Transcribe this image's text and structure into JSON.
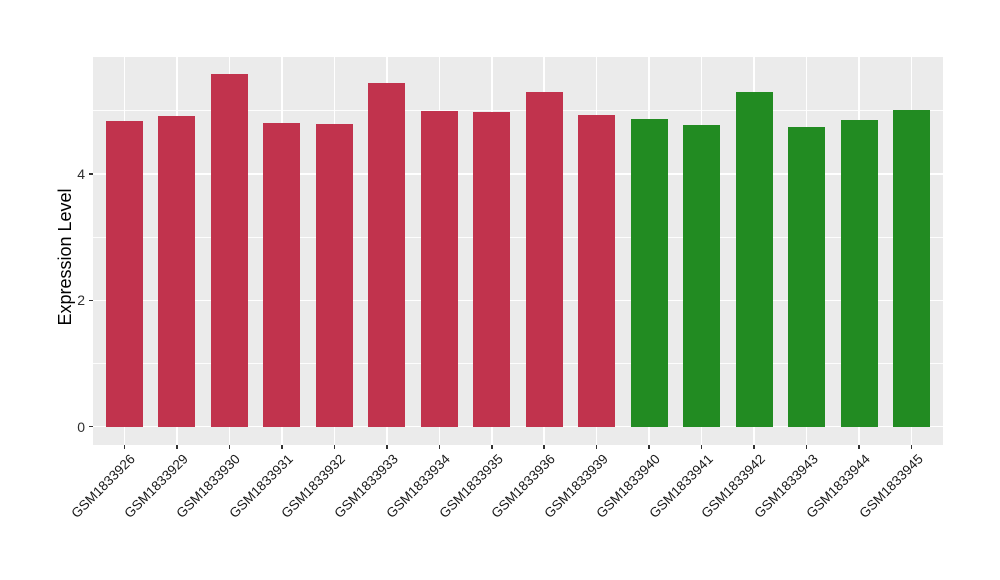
{
  "chart": {
    "panel_bg": "#ebebeb",
    "grid_color": "#ffffff",
    "axis_text_color": "#2e2e2e",
    "tick_mark_color": "#333333"
  },
  "chart_data": {
    "type": "bar",
    "title": "",
    "xlabel": "",
    "ylabel": "Expression Level",
    "categories": [
      "GSM1833926",
      "GSM1833929",
      "GSM1833930",
      "GSM1833931",
      "GSM1833932",
      "GSM1833933",
      "GSM1833934",
      "GSM1833935",
      "GSM1833936",
      "GSM1833939",
      "GSM1833940",
      "GSM1833941",
      "GSM1833942",
      "GSM1833943",
      "GSM1833944",
      "GSM1833945"
    ],
    "values": [
      4.84,
      4.92,
      5.58,
      4.81,
      4.79,
      5.44,
      5.0,
      4.98,
      5.3,
      4.93,
      4.87,
      4.77,
      5.3,
      4.74,
      4.85,
      5.01
    ],
    "bar_colors": [
      "#c1334d",
      "#c1334d",
      "#c1334d",
      "#c1334d",
      "#c1334d",
      "#c1334d",
      "#c1334d",
      "#c1334d",
      "#c1334d",
      "#c1334d",
      "#228b22",
      "#228b22",
      "#228b22",
      "#228b22",
      "#228b22",
      "#228b22"
    ],
    "ylim": [
      -0.29,
      5.85
    ],
    "yticks": [
      0,
      2,
      4
    ],
    "yticks_minor": [
      1,
      3,
      5
    ],
    "ytick_labels": [
      "0",
      "2",
      "4"
    ],
    "grid": true,
    "legend": false,
    "x_label_rotation_deg": 45
  }
}
